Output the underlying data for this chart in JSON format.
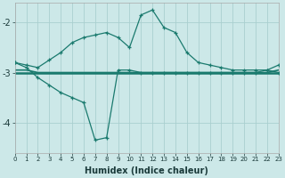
{
  "x": [
    0,
    1,
    2,
    3,
    4,
    5,
    6,
    7,
    8,
    9,
    10,
    11,
    12,
    13,
    14,
    15,
    16,
    17,
    18,
    19,
    20,
    21,
    22,
    23
  ],
  "line_upper": [
    -2.8,
    -2.85,
    -2.9,
    -2.75,
    -2.6,
    -2.4,
    -2.3,
    -2.25,
    -2.2,
    -2.3,
    -2.5,
    -1.85,
    -1.75,
    -2.1,
    -2.2,
    -2.6,
    -2.8,
    -2.85,
    -2.9,
    -2.95,
    -2.95,
    -2.95,
    -2.95,
    -2.85
  ],
  "line_lower": [
    -2.8,
    -2.9,
    -3.1,
    -3.25,
    -3.4,
    -3.5,
    -3.6,
    -4.35,
    -4.3,
    -2.95,
    -2.95,
    -3.0,
    -3.0,
    -3.0,
    -3.0,
    -3.0,
    -3.0,
    -3.0,
    -3.0,
    -3.0,
    -3.0,
    -3.0,
    -2.95,
    -3.0
  ],
  "line_flat1": [
    -2.95,
    -2.95,
    -3.0,
    -3.0,
    -3.0,
    -3.0,
    -3.0,
    -3.0,
    -3.0,
    -3.0,
    -3.0,
    -3.0,
    -3.0,
    -3.0,
    -3.0,
    -3.0,
    -3.0,
    -3.0,
    -3.0,
    -3.0,
    -3.0,
    -3.0,
    -3.0,
    -2.95
  ],
  "line_flat2": [
    -3.0,
    -3.0,
    -3.0,
    -3.0,
    -3.0,
    -3.0,
    -3.0,
    -3.0,
    -3.0,
    -3.0,
    -3.0,
    -3.0,
    -3.0,
    -3.0,
    -3.0,
    -3.0,
    -3.0,
    -3.0,
    -3.0,
    -3.0,
    -3.0,
    -3.0,
    -3.0,
    -3.0
  ],
  "color": "#1a7a6e",
  "bg_color": "#cce8e8",
  "grid_color": "#aacfcf",
  "xlabel": "Humidex (Indice chaleur)",
  "yticks": [
    -4,
    -3,
    -2
  ],
  "xticks": [
    0,
    1,
    2,
    3,
    4,
    5,
    6,
    7,
    8,
    9,
    10,
    11,
    12,
    13,
    14,
    15,
    16,
    17,
    18,
    19,
    20,
    21,
    22,
    23
  ],
  "ylim": [
    -4.6,
    -1.6
  ],
  "xlim": [
    0,
    23
  ]
}
